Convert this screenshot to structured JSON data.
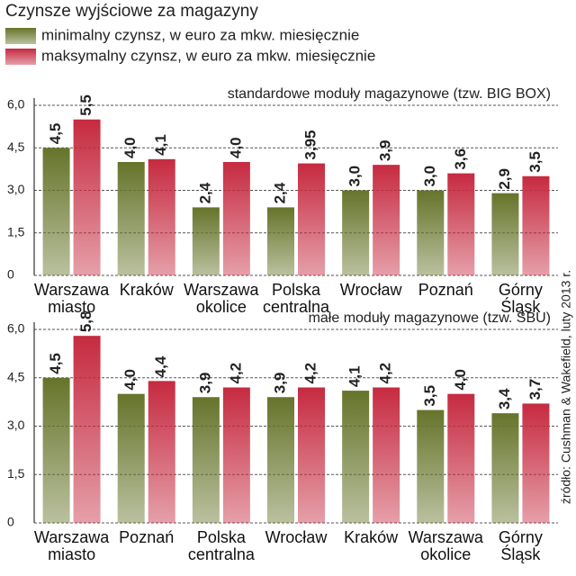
{
  "title": "Czynsze wyjściowe za magazyny",
  "source": "źródło: Cushman & Wakefield, luty 2013 r.",
  "chart_data": [
    {
      "type": "bar",
      "subtitle": "standardowe moduły magazynowe (tzw. BIG BOX)",
      "categories": [
        "Warszawa miasto",
        "Kraków",
        "Warszawa okolice",
        "Polska centralna",
        "Wrocław",
        "Poznań",
        "Górny Śląsk"
      ],
      "series": [
        {
          "name": "minimalny czynsz, w euro za mkw. miesięcznie",
          "color": "#66742a",
          "values": [
            4.5,
            4.0,
            2.4,
            2.4,
            3.0,
            3.0,
            2.9
          ],
          "value_labels": [
            "4,5",
            "4,0",
            "2,4",
            "2,4",
            "3,0",
            "3,0",
            "2,9"
          ]
        },
        {
          "name": "maksymalny czynsz, w euro za mkw. miesięcznie",
          "color": "#c62a40",
          "values": [
            5.5,
            4.1,
            4.0,
            3.95,
            3.9,
            3.6,
            3.5
          ],
          "value_labels": [
            "5,5",
            "4,1",
            "4,0",
            "3,95",
            "3,9",
            "3,6",
            "3,5"
          ]
        }
      ],
      "ylim": [
        0,
        6
      ],
      "yticks": [
        {
          "value": 0,
          "label": "0"
        },
        {
          "value": 1.5,
          "label": "1,5"
        },
        {
          "value": 3,
          "label": "3,0"
        },
        {
          "value": 4.5,
          "label": "4,5"
        },
        {
          "value": 6,
          "label": "6,0"
        }
      ],
      "grid": true
    },
    {
      "type": "bar",
      "subtitle": "małe moduły magazynowe (tzw. SBU)",
      "categories": [
        "Warszawa miasto",
        "Poznań",
        "Polska centralna",
        "Wrocław",
        "Kraków",
        "Warszawa okolice",
        "Górny Śląsk"
      ],
      "series": [
        {
          "color": "#66742a",
          "values": [
            4.5,
            4.0,
            3.9,
            3.9,
            4.1,
            3.5,
            3.4
          ],
          "value_labels": [
            "4,5",
            "4,0",
            "3,9",
            "3,9",
            "4,1",
            "3,5",
            "3,4"
          ]
        },
        {
          "color": "#c62a40",
          "values": [
            5.8,
            4.4,
            4.2,
            4.2,
            4.2,
            4.0,
            3.7
          ],
          "value_labels": [
            "5,8",
            "4,4",
            "4,2",
            "4,2",
            "4,2",
            "4,0",
            "3,7"
          ]
        }
      ],
      "ylim": [
        0,
        6
      ],
      "yticks": [
        {
          "value": 0,
          "label": "0"
        },
        {
          "value": 1.5,
          "label": "1,5"
        },
        {
          "value": 3,
          "label": "3,0"
        },
        {
          "value": 4.5,
          "label": "4,5"
        },
        {
          "value": 6,
          "label": "6,0"
        }
      ],
      "grid": true
    }
  ]
}
